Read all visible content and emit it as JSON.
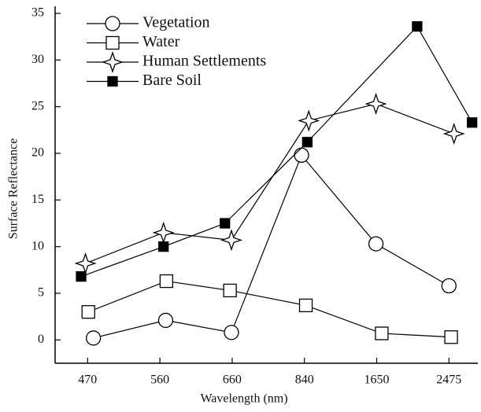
{
  "chart_data": {
    "type": "line",
    "x_label": "Wavelength (nm)",
    "y_label": "Surface Reflectance",
    "xlim": [
      -0.45,
      5.4
    ],
    "xticks": [
      {
        "value": 0,
        "label": "470"
      },
      {
        "value": 1,
        "label": "560"
      },
      {
        "value": 2,
        "label": "660"
      },
      {
        "value": 3,
        "label": "840"
      },
      {
        "value": 4,
        "label": "1650"
      },
      {
        "value": 5,
        "label": "2475"
      }
    ],
    "ylim": [
      -2.5,
      35
    ],
    "yticks": [
      0,
      5,
      10,
      15,
      20,
      25,
      30,
      35
    ],
    "legend": "upper left",
    "series": [
      {
        "name": "Vegetation",
        "color": "#000000",
        "marker": "circle",
        "x": [
          0.08,
          1.08,
          1.99,
          2.96,
          3.99,
          5.0
        ],
        "values": [
          0.2,
          2.1,
          0.8,
          19.8,
          10.3,
          5.8
        ]
      },
      {
        "name": "Water",
        "color": "#000000",
        "marker": "square",
        "x": [
          0.01,
          1.09,
          1.97,
          3.02,
          4.07,
          5.03
        ],
        "values": [
          3.0,
          6.3,
          5.3,
          3.7,
          0.7,
          0.3
        ]
      },
      {
        "name": "Human Settlements",
        "color": "#000000",
        "marker": "star",
        "x": [
          -0.03,
          1.05,
          1.99,
          3.06,
          3.99,
          5.07
        ],
        "values": [
          8.2,
          11.5,
          10.7,
          23.5,
          25.3,
          22.1
        ]
      },
      {
        "name": "Bare Soil",
        "color": "#000000",
        "marker": "filled-square",
        "x": [
          -0.09,
          1.05,
          1.9,
          3.04,
          4.56,
          5.32
        ],
        "values": [
          6.8,
          10.0,
          12.5,
          21.2,
          33.6,
          23.3
        ]
      }
    ]
  }
}
